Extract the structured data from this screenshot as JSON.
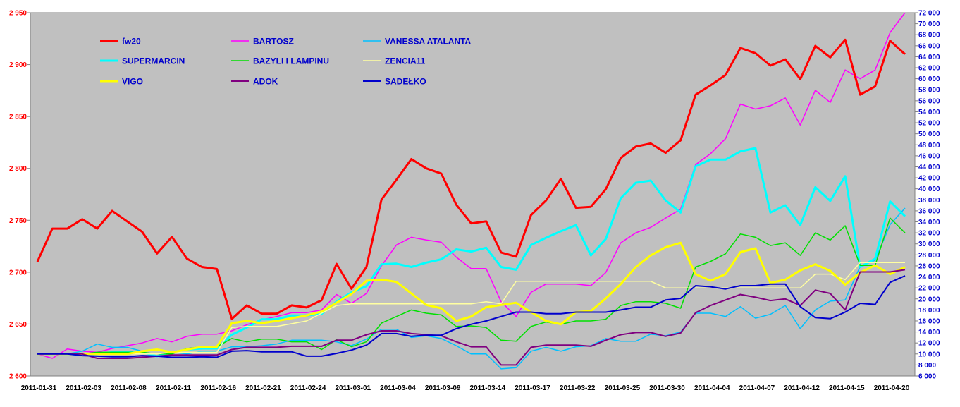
{
  "chart_data": {
    "type": "line",
    "title": "",
    "xlabel": "",
    "ylabel": "",
    "ylim": [
      2600,
      2950
    ],
    "y2lim": [
      6000,
      72000
    ],
    "left_ticks": [
      "2 600",
      "2 650",
      "2 700",
      "2 750",
      "2 800",
      "2 850",
      "2 900",
      "2 950"
    ],
    "right_ticks": [
      "6 000",
      "8 000",
      "10 000",
      "12 000",
      "14 000",
      "16 000",
      "18 000",
      "20 000",
      "22 000",
      "24 000",
      "26 000",
      "28 000",
      "30 000",
      "32 000",
      "34 000",
      "36 000",
      "38 000",
      "40 000",
      "42 000",
      "44 000",
      "46 000",
      "48 000",
      "50 000",
      "52 000",
      "54 000",
      "56 000",
      "58 000",
      "60 000",
      "62 000",
      "64 000",
      "66 000",
      "68 000",
      "70 000",
      "72 000"
    ],
    "x_tick_labels": [
      "2011-01-31",
      "2011-02-03",
      "2011-02-08",
      "2011-02-11",
      "2011-02-16",
      "2011-02-21",
      "2011-02-24",
      "2011-03-01",
      "2011-03-04",
      "2011-03-09",
      "2011-03-14",
      "2011-03-17",
      "2011-03-22",
      "2011-03-25",
      "2011-03-30",
      "2011-04-04",
      "2011-04-07",
      "2011-04-12",
      "2011-04-15",
      "2011-04-20"
    ],
    "legend_position": "top-left",
    "series": [
      {
        "name": "fw20",
        "color": "#ff0000",
        "axis": "left",
        "width": 3,
        "values": [
          2710,
          2742,
          2742,
          2751,
          2742,
          2759,
          2749,
          2739,
          2718,
          2734,
          2713,
          2705,
          2703,
          2655,
          2668,
          2660,
          2660,
          2668,
          2666,
          2673,
          2708,
          2684,
          2705,
          2770,
          2789,
          2809,
          2800,
          2795,
          2765,
          2747,
          2749,
          2719,
          2715,
          2755,
          2769,
          2790,
          2762,
          2763,
          2780,
          2810,
          2821,
          2824,
          2815,
          2827,
          2871,
          2880,
          2890,
          2916,
          2911,
          2899,
          2905,
          2886,
          2918,
          2907,
          2924,
          2871,
          2879,
          2923,
          2910
        ]
      },
      {
        "name": "BARTOSZ",
        "color": "#ff00ff",
        "axis": "right",
        "width": 1.5,
        "values": [
          10000,
          9200,
          10900,
          10500,
          10300,
          11000,
          11500,
          12000,
          12800,
          12200,
          13200,
          13600,
          13600,
          14200,
          15300,
          16200,
          16800,
          17500,
          17500,
          18000,
          20800,
          19200,
          21000,
          26000,
          29800,
          31200,
          30700,
          30300,
          27600,
          25500,
          25500,
          19500,
          16800,
          21200,
          22700,
          22700,
          22700,
          22400,
          24800,
          30200,
          32000,
          33000,
          34700,
          36300,
          44400,
          46400,
          49100,
          55400,
          54500,
          55100,
          56500,
          51600,
          57900,
          55700,
          61600,
          60000,
          61600,
          68400,
          72000
        ]
      },
      {
        "name": "VANESSA ATALANTA",
        "color": "#00c0ff",
        "axis": "right",
        "width": 1.5,
        "values": [
          10000,
          10000,
          10000,
          10500,
          11800,
          11200,
          11200,
          10500,
          9500,
          10300,
          10000,
          10500,
          10500,
          11300,
          11300,
          11500,
          11800,
          12500,
          12500,
          12500,
          12200,
          11500,
          12700,
          14500,
          14500,
          13000,
          13300,
          12800,
          11500,
          10000,
          10000,
          7300,
          7500,
          10500,
          11200,
          10500,
          11300,
          11500,
          12800,
          12300,
          12300,
          13600,
          13300,
          14000,
          17400,
          17400,
          16800,
          18600,
          16500,
          17200,
          18800,
          14600,
          18000,
          19600,
          19800,
          25900,
          27000,
          33500,
          36500
        ]
      },
      {
        "name": "SUPERMARCIN",
        "color": "#00ffff",
        "axis": "right",
        "width": 3,
        "values": [
          10000,
          10000,
          10000,
          10000,
          10000,
          10300,
          10300,
          10300,
          9600,
          10300,
          10800,
          11000,
          11000,
          13500,
          14800,
          16300,
          16300,
          17000,
          17000,
          17300,
          19500,
          21200,
          22300,
          26300,
          26400,
          25800,
          26600,
          27200,
          29000,
          28600,
          29300,
          25800,
          25300,
          29800,
          31100,
          32300,
          33400,
          27900,
          30900,
          38300,
          41100,
          41500,
          37900,
          35700,
          44100,
          45300,
          45300,
          46800,
          47400,
          35700,
          37000,
          33400,
          40300,
          37800,
          42300,
          25800,
          27300,
          37700,
          35000
        ]
      },
      {
        "name": "BAZYLI I LAMPINU",
        "color": "#00e000",
        "axis": "right",
        "width": 1.5,
        "values": [
          10000,
          10000,
          10000,
          10000,
          10300,
          10300,
          10300,
          10300,
          10000,
          10000,
          11000,
          11300,
          11300,
          12800,
          12200,
          12700,
          12700,
          12200,
          12200,
          10800,
          12600,
          11300,
          12200,
          15600,
          16800,
          18000,
          17400,
          17100,
          15000,
          15100,
          14800,
          12500,
          12300,
          15000,
          15800,
          15400,
          16000,
          16000,
          16300,
          18800,
          19500,
          19500,
          19200,
          18300,
          25800,
          26800,
          28200,
          31800,
          31200,
          29700,
          30200,
          27900,
          32000,
          30700,
          33300,
          26100,
          26100,
          34700,
          32000
        ]
      },
      {
        "name": "ZENCIA11",
        "color": "#ffffa0",
        "axis": "right",
        "width": 1.5,
        "values": [
          10000,
          10000,
          10000,
          10000,
          10000,
          10000,
          10000,
          10000,
          10000,
          10300,
          10300,
          10300,
          10300,
          14800,
          15000,
          15000,
          15000,
          15500,
          16000,
          17400,
          18800,
          19100,
          19100,
          19100,
          19100,
          19100,
          19100,
          19100,
          19100,
          19100,
          19500,
          19100,
          23200,
          23200,
          23200,
          23200,
          23200,
          23200,
          23200,
          23200,
          23200,
          23200,
          22000,
          22000,
          22000,
          22000,
          22000,
          22000,
          22000,
          22000,
          22000,
          22000,
          24500,
          24500,
          23500,
          26600,
          26600,
          26600,
          26600
        ]
      },
      {
        "name": "VIGO",
        "color": "#ffff00",
        "axis": "right",
        "width": 3,
        "values": [
          10000,
          10000,
          10000,
          10000,
          10000,
          10000,
          10000,
          10500,
          10800,
          10300,
          10800,
          11300,
          11300,
          15600,
          16000,
          15600,
          16000,
          16500,
          17000,
          17700,
          19300,
          20900,
          23300,
          23500,
          23100,
          21000,
          18900,
          18300,
          16000,
          16800,
          18500,
          18900,
          19300,
          17600,
          16000,
          15400,
          17600,
          17800,
          20100,
          22700,
          25800,
          27900,
          29400,
          30200,
          24500,
          23300,
          24500,
          28500,
          29200,
          22900,
          23500,
          25200,
          26300,
          25100,
          22600,
          24800,
          26100,
          24500,
          25800
        ]
      },
      {
        "name": "ADOK",
        "color": "#800080",
        "axis": "right",
        "width": 2,
        "values": [
          10000,
          10000,
          10000,
          10000,
          9200,
          9200,
          9200,
          9400,
          9600,
          9800,
          9800,
          9800,
          9800,
          10800,
          11200,
          11200,
          11200,
          11400,
          11400,
          11400,
          12500,
          12500,
          13500,
          14200,
          14200,
          13700,
          13500,
          13300,
          12200,
          11300,
          11300,
          8000,
          8000,
          11200,
          11600,
          11600,
          11600,
          11400,
          12500,
          13500,
          13900,
          13900,
          13200,
          13800,
          17500,
          18800,
          19800,
          20800,
          20300,
          19700,
          20000,
          18800,
          21600,
          21000,
          18000,
          24900,
          24900,
          24900,
          25300
        ]
      },
      {
        "name": "SADEŁKO",
        "color": "#0000cc",
        "axis": "right",
        "width": 2,
        "values": [
          10000,
          10000,
          10000,
          9700,
          9600,
          9500,
          9500,
          9700,
          9600,
          9400,
          9400,
          9500,
          9400,
          10500,
          10600,
          10400,
          10400,
          10400,
          9600,
          9600,
          10100,
          10700,
          11600,
          13700,
          13700,
          13200,
          13400,
          13400,
          14600,
          15400,
          16000,
          16800,
          17600,
          17600,
          17300,
          17300,
          17600,
          17600,
          17600,
          18000,
          18500,
          18500,
          19800,
          20100,
          22400,
          22200,
          21800,
          22400,
          22400,
          22700,
          22700,
          18600,
          16600,
          16400,
          17600,
          19200,
          19000,
          23000,
          24200
        ]
      }
    ]
  }
}
